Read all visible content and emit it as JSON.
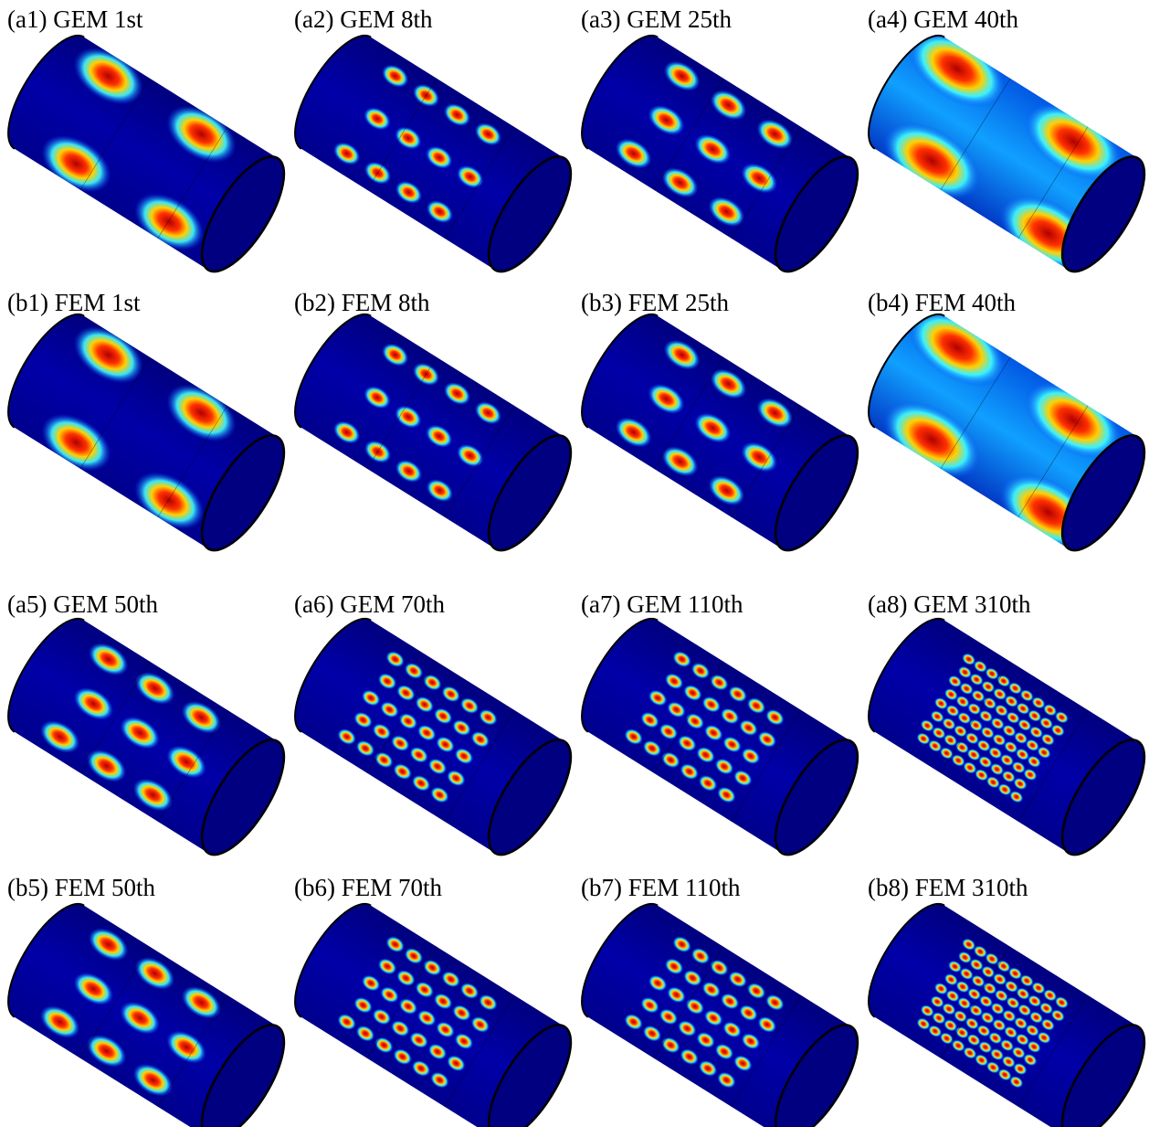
{
  "panels": [
    {
      "label": "(a1) GEM 1st"
    },
    {
      "label": "(a2) GEM 8th"
    },
    {
      "label": "(a3) GEM 25th"
    },
    {
      "label": "(a4) GEM 40th"
    },
    {
      "label": "(b1) FEM 1st"
    },
    {
      "label": "(b2) FEM 8th"
    },
    {
      "label": "(b3) FEM 25th"
    },
    {
      "label": "(b4) FEM 40th"
    },
    {
      "label": "(a5) GEM 50th"
    },
    {
      "label": "(a6) GEM 70th"
    },
    {
      "label": "(a7) GEM 110th"
    },
    {
      "label": "(a8) GEM 310th"
    },
    {
      "label": "(b5) FEM 50th"
    },
    {
      "label": "(b6) FEM 70th"
    },
    {
      "label": "(b7) FEM 110th"
    },
    {
      "label": "(b8) FEM 310th"
    }
  ]
}
